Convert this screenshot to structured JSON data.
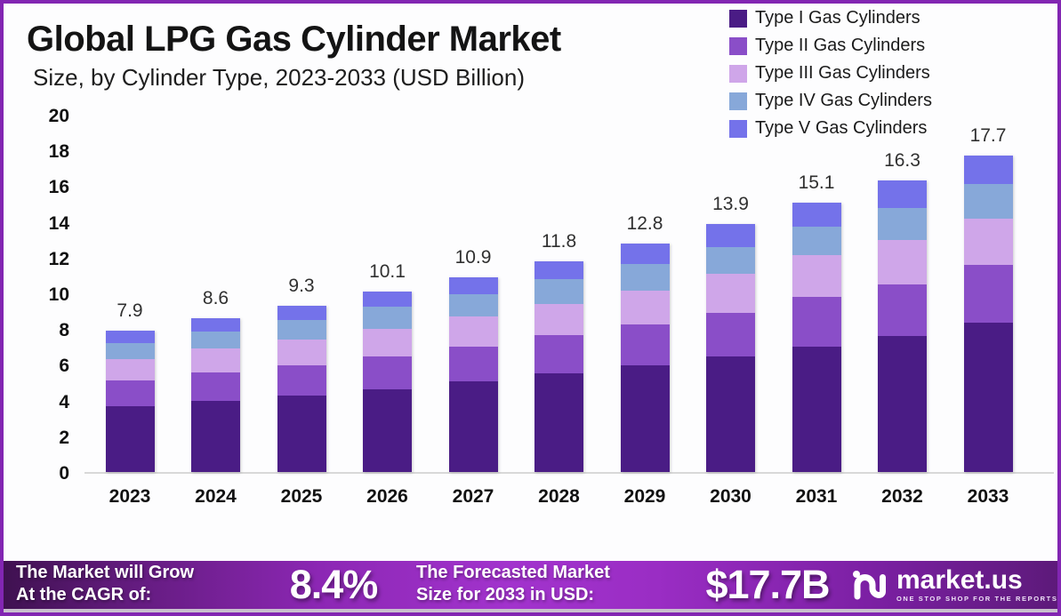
{
  "header": {
    "title": "Global LPG Gas Cylinder Market",
    "subtitle": "Size, by Cylinder Type, 2023-2033 (USD Billion)"
  },
  "chart_data": {
    "type": "bar",
    "stacked": true,
    "title": "Global LPG Gas Cylinder Market Size, by Cylinder Type, 2023-2033 (USD Billion)",
    "categories": [
      "2023",
      "2024",
      "2025",
      "2026",
      "2027",
      "2028",
      "2029",
      "2030",
      "2031",
      "2032",
      "2033"
    ],
    "series": [
      {
        "name": "Type I Gas Cylinders",
        "color": "#4A1C85",
        "values": [
          3.7,
          4.0,
          4.3,
          4.65,
          5.05,
          5.5,
          5.95,
          6.45,
          7.0,
          7.6,
          8.35
        ]
      },
      {
        "name": "Type II Gas Cylinders",
        "color": "#8A4EC8",
        "values": [
          1.4,
          1.55,
          1.65,
          1.8,
          1.95,
          2.15,
          2.3,
          2.45,
          2.8,
          2.9,
          3.25
        ]
      },
      {
        "name": "Type III Gas Cylinders",
        "color": "#CFA6E9",
        "values": [
          1.2,
          1.35,
          1.45,
          1.55,
          1.7,
          1.75,
          1.9,
          2.2,
          2.35,
          2.5,
          2.6
        ]
      },
      {
        "name": "Type IV Gas Cylinders",
        "color": "#87A8D9",
        "values": [
          0.9,
          0.95,
          1.1,
          1.25,
          1.25,
          1.4,
          1.5,
          1.5,
          1.6,
          1.8,
          1.9
        ]
      },
      {
        "name": "Type V Gas Cylinders",
        "color": "#7472EA",
        "values": [
          0.7,
          0.75,
          0.8,
          0.85,
          0.95,
          1.0,
          1.15,
          1.3,
          1.35,
          1.5,
          1.6
        ]
      }
    ],
    "totals": [
      7.9,
      8.6,
      9.3,
      10.1,
      10.9,
      11.8,
      12.8,
      13.9,
      15.1,
      16.3,
      17.7
    ],
    "xlabel": "",
    "ylabel": "",
    "ylim": [
      0,
      20
    ],
    "y_ticks": [
      0,
      2,
      4,
      6,
      8,
      10,
      12,
      14,
      16,
      18,
      20
    ],
    "grid": false,
    "legend_position": "top-right"
  },
  "footer": {
    "cagr_label_line1": "The Market will Grow",
    "cagr_label_line2": "At the CAGR of:",
    "cagr_value": "8.4%",
    "forecast_label_line1": "The Forecasted Market",
    "forecast_label_line2": "Size for 2033 in USD:",
    "forecast_value": "$17.7B",
    "brand": {
      "name": "market.us",
      "tagline": "ONE STOP SHOP FOR THE REPORTS"
    }
  }
}
